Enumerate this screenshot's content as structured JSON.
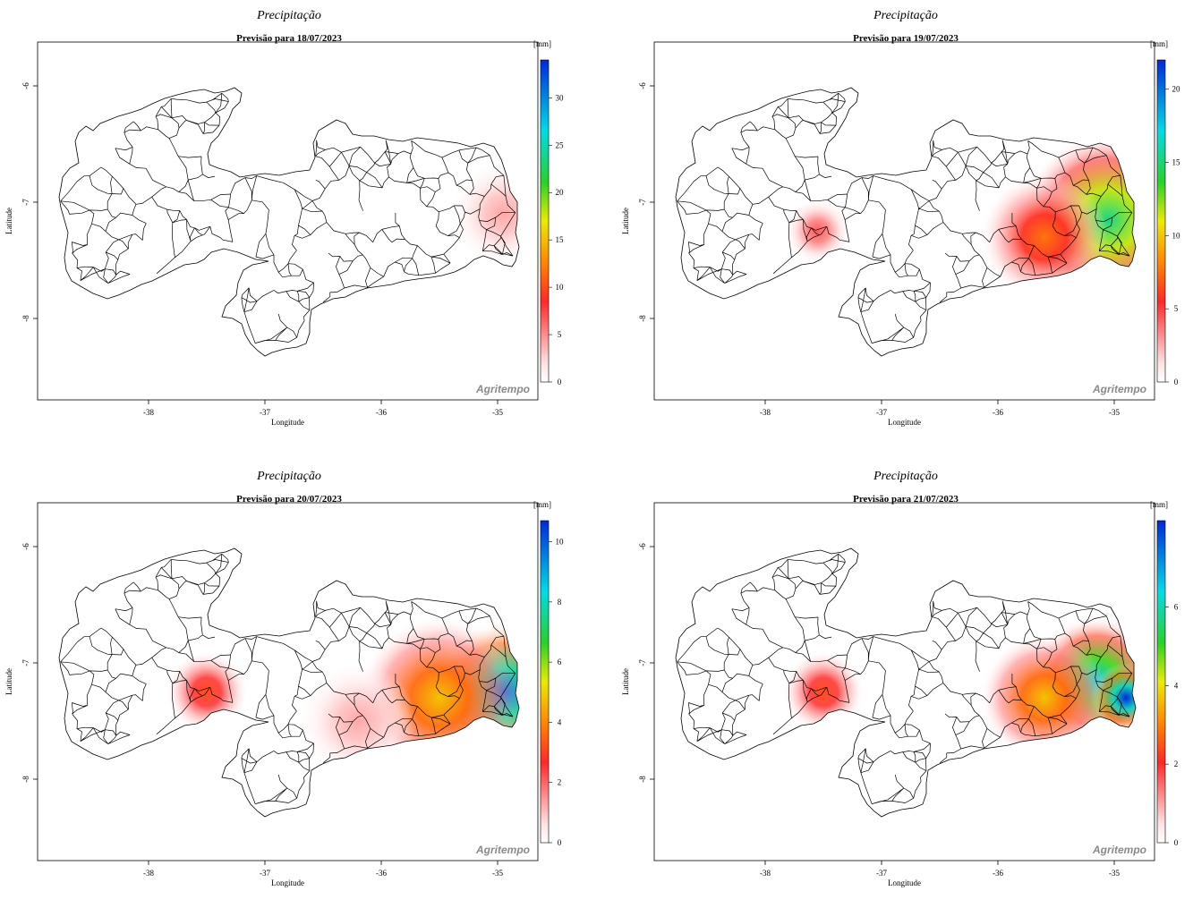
{
  "maps": [
    {
      "title": "Precipitação",
      "subtitle": "Previsão para 18/07/2023",
      "unit": "[mm]",
      "colorbar_ticks": [
        "0",
        "5",
        "10",
        "15",
        "20",
        "25",
        "30"
      ],
      "colorbar_max": 34,
      "xlabel": "Longitude",
      "ylabel": "Latitude",
      "x_ticks": [
        "-38",
        "-37",
        "-36",
        "-35"
      ],
      "y_ticks": [
        "-6",
        "-7",
        "-8"
      ],
      "brand": "Agritempo",
      "rain_spots": [
        {
          "lon": -34.95,
          "lat": -7.1,
          "r": 0.45,
          "intensity": 0.12
        }
      ]
    },
    {
      "title": "Precipitação",
      "subtitle": "Previsão para 19/07/2023",
      "unit": "[mm]",
      "colorbar_ticks": [
        "0",
        "5",
        "10",
        "15",
        "20"
      ],
      "colorbar_max": 22,
      "xlabel": "Longitude",
      "ylabel": "Latitude",
      "x_ticks": [
        "-38",
        "-37",
        "-36",
        "-35"
      ],
      "y_ticks": [
        "-6",
        "-7",
        "-8"
      ],
      "brand": "Agritempo",
      "rain_spots": [
        {
          "lon": -35.05,
          "lat": -7.15,
          "r": 0.75,
          "intensity": 0.7
        },
        {
          "lon": -35.6,
          "lat": -7.3,
          "r": 0.55,
          "intensity": 0.35
        },
        {
          "lon": -37.55,
          "lat": -7.25,
          "r": 0.28,
          "intensity": 0.2
        }
      ]
    },
    {
      "title": "Precipitação",
      "subtitle": "Previsão para 20/07/2023",
      "unit": "[mm]",
      "colorbar_ticks": [
        "0",
        "2",
        "4",
        "6",
        "8",
        "10"
      ],
      "colorbar_max": 10.7,
      "xlabel": "Longitude",
      "ylabel": "Latitude",
      "x_ticks": [
        "-38",
        "-37",
        "-36",
        "-35"
      ],
      "y_ticks": [
        "-6",
        "-7",
        "-8"
      ],
      "brand": "Agritempo",
      "rain_spots": [
        {
          "lon": -34.95,
          "lat": -7.25,
          "r": 0.6,
          "intensity": 0.95
        },
        {
          "lon": -35.5,
          "lat": -7.3,
          "r": 0.7,
          "intensity": 0.45
        },
        {
          "lon": -37.5,
          "lat": -7.25,
          "r": 0.35,
          "intensity": 0.3
        },
        {
          "lon": -36.2,
          "lat": -7.5,
          "r": 0.5,
          "intensity": 0.12
        }
      ]
    },
    {
      "title": "Precipitação",
      "subtitle": "Previsão para 21/07/2023",
      "unit": "[mm]",
      "colorbar_ticks": [
        "0",
        "2",
        "4",
        "6"
      ],
      "colorbar_max": 8.2,
      "xlabel": "Longitude",
      "ylabel": "Latitude",
      "x_ticks": [
        "-38",
        "-37",
        "-36",
        "-35"
      ],
      "y_ticks": [
        "-6",
        "-7",
        "-8"
      ],
      "brand": "Agritempo",
      "rain_spots": [
        {
          "lon": -35.15,
          "lat": -7.15,
          "r": 0.55,
          "intensity": 0.8
        },
        {
          "lon": -34.9,
          "lat": -7.3,
          "r": 0.3,
          "intensity": 1.0
        },
        {
          "lon": -35.6,
          "lat": -7.3,
          "r": 0.55,
          "intensity": 0.45
        },
        {
          "lon": -37.5,
          "lat": -7.25,
          "r": 0.35,
          "intensity": 0.3
        }
      ]
    }
  ]
}
